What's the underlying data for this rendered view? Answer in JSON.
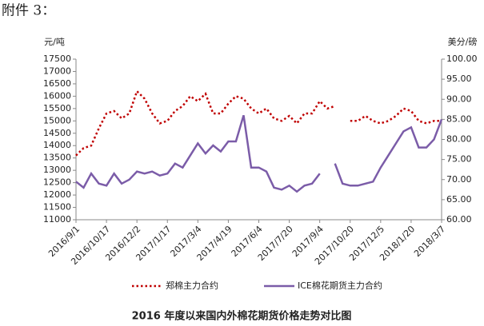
{
  "header": "附件 3：",
  "chart_data": {
    "type": "line",
    "title": "2016 年度以来国内外棉花期货价格走势对比图",
    "y_label": "元/吨",
    "y2_label": "美分/磅",
    "categories": [
      "2016/9/1",
      null,
      null,
      null,
      "2016/10/17",
      null,
      null,
      null,
      "2016/12/2",
      null,
      null,
      null,
      "2017/1/17",
      null,
      null,
      null,
      "2017/3/4",
      null,
      null,
      null,
      "2017/4/19",
      null,
      null,
      null,
      "2017/6/4",
      null,
      null,
      null,
      "2017/7/20",
      null,
      null,
      null,
      "2017/9/4",
      null,
      null,
      null,
      "2017/10/20",
      null,
      null,
      null,
      "2017/12/5",
      null,
      null,
      null,
      "2018/1/20",
      null,
      null,
      null,
      "2018/3/7"
    ],
    "series": [
      {
        "name": "郑棉主力合约",
        "color": "#c00000",
        "style": "dotted",
        "values": [
          13600,
          13900,
          14000,
          14700,
          15300,
          15400,
          15100,
          15300,
          16200,
          15900,
          15300,
          14900,
          15000,
          15400,
          15600,
          16000,
          15800,
          16100,
          15300,
          15300,
          15700,
          16000,
          15900,
          15500,
          15300,
          15500,
          15100,
          15000,
          15200,
          14900,
          15300,
          15300,
          15800,
          15500,
          15600,
          null,
          15000,
          15000,
          15200,
          15000,
          14900,
          15000,
          15200,
          15500,
          15400,
          15000,
          14900,
          15000,
          15000
        ]
      },
      {
        "name": "ICE棉花期货主力合约",
        "color": "#7b5ca8",
        "style": "solid",
        "axis": "y2",
        "values": [
          69.5,
          68,
          71.5,
          69,
          68.5,
          71.5,
          69,
          70,
          72,
          71.5,
          72,
          71,
          71.5,
          74,
          73,
          76,
          79,
          76.5,
          78.5,
          77,
          79.5,
          79.5,
          86,
          73,
          73,
          72,
          68,
          67.5,
          68.5,
          67,
          68.5,
          69,
          71.5,
          null,
          74,
          69,
          68.5,
          68.5,
          69,
          69.5,
          73,
          76,
          79,
          82,
          83,
          78,
          78,
          80,
          85
        ]
      }
    ],
    "ylim": [
      11000,
      17500
    ],
    "yticks": [
      11000,
      11500,
      12000,
      12500,
      13000,
      13500,
      14000,
      14500,
      15000,
      15500,
      16000,
      16500,
      17000,
      17500
    ],
    "y2lim": [
      60,
      100
    ],
    "y2ticks": [
      {
        "value": 60,
        "label": "60.00"
      },
      {
        "value": 65,
        "label": "65.00"
      },
      {
        "value": 70,
        "label": "70.00"
      },
      {
        "value": 75,
        "label": "75.00"
      },
      {
        "value": 80,
        "label": "80.00"
      },
      {
        "value": 85,
        "label": "85.00"
      },
      {
        "value": 90,
        "label": "90.00"
      },
      {
        "value": 95,
        "label": "95.00"
      },
      {
        "value": 100,
        "label": "100.00"
      }
    ],
    "legend": "bottom"
  }
}
